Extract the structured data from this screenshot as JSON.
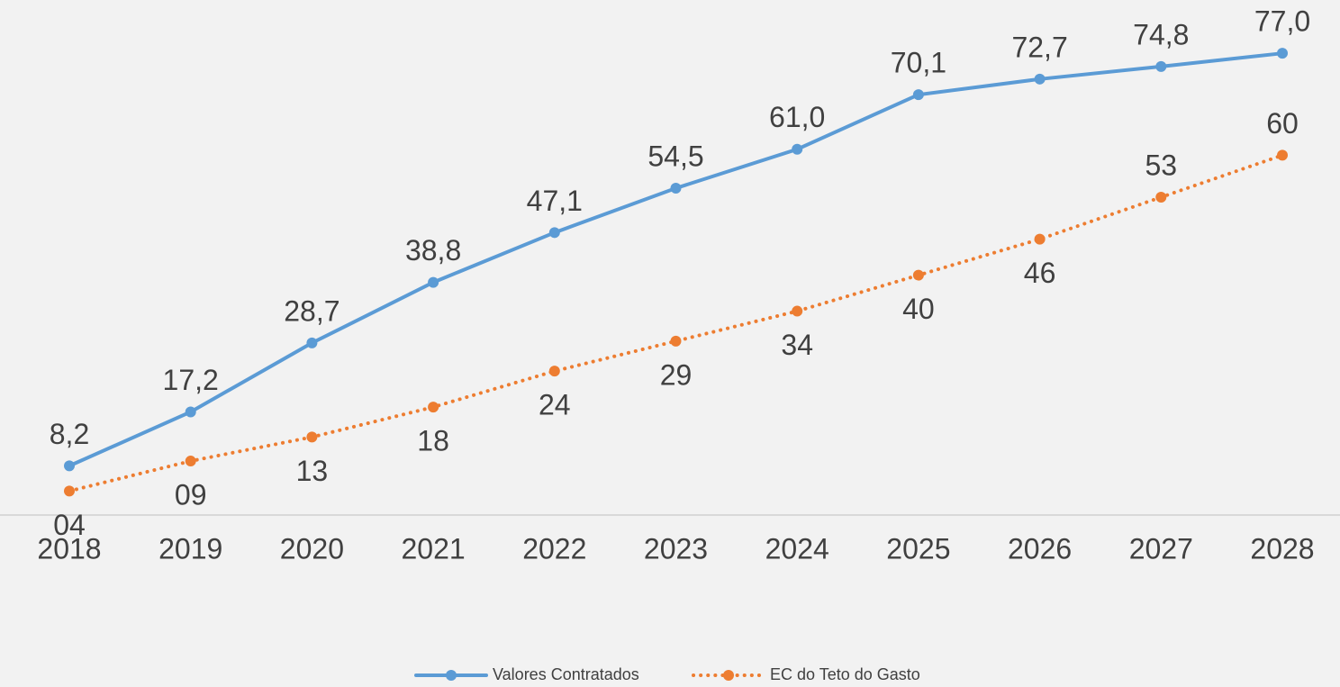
{
  "chart_data": {
    "type": "line",
    "categories": [
      "2018",
      "2019",
      "2020",
      "2021",
      "2022",
      "2023",
      "2024",
      "2025",
      "2026",
      "2027",
      "2028"
    ],
    "series": [
      {
        "name": "Valores Contratados",
        "color": "#5b9bd5",
        "style": "solid",
        "values": [
          8.2,
          17.2,
          28.7,
          38.8,
          47.1,
          54.5,
          61.0,
          70.1,
          72.7,
          74.8,
          77.0
        ],
        "value_labels": [
          "8,2",
          "17,2",
          "28,7",
          "38,8",
          "47,1",
          "54,5",
          "61,0",
          "70,1",
          "72,7",
          "74,8",
          "77,0"
        ]
      },
      {
        "name": "EC do Teto do Gasto",
        "color": "#ed7d31",
        "style": "dotted",
        "values": [
          4,
          9,
          13,
          18,
          24,
          29,
          34,
          40,
          46,
          53,
          60
        ],
        "value_labels": [
          "04",
          "09",
          "13",
          "18",
          "24",
          "29",
          "34",
          "40",
          "46",
          "53",
          "60"
        ]
      }
    ],
    "ylim": [
      0,
      86
    ]
  }
}
